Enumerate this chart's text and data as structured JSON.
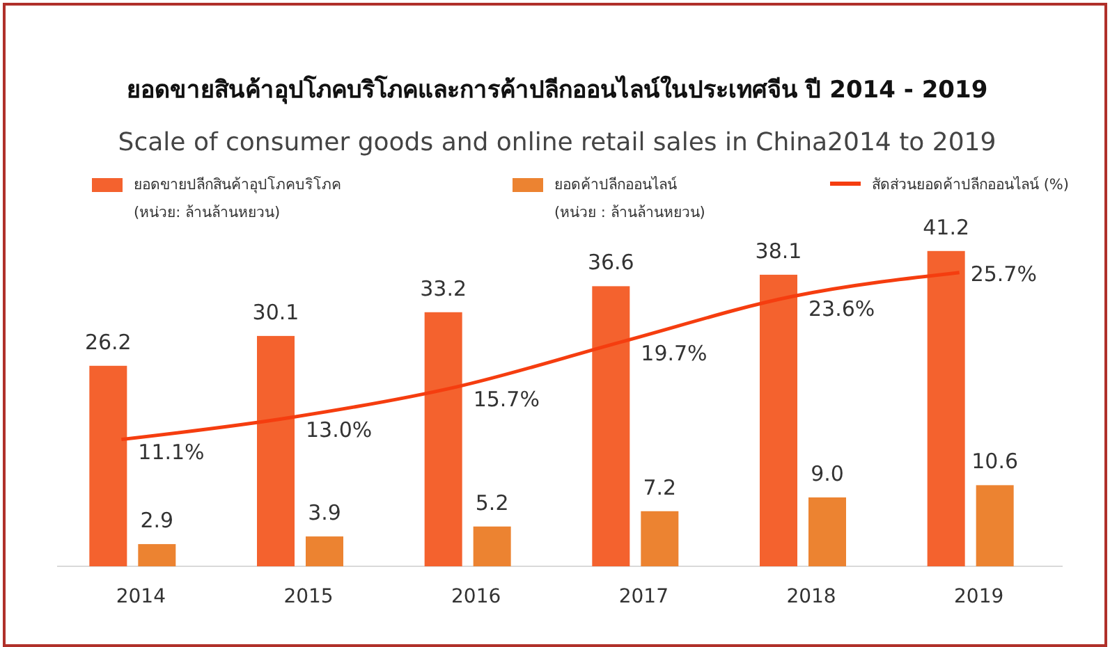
{
  "chart_data": {
    "type": "bar",
    "title": "ยอดขายสินค้าอุปโภคบริโภคและการค้าปลีกออนไลน์ในประเทศจีน ปี 2014 - 2019",
    "subtitle": "Scale of consumer goods and online retail sales in China2014 to 2019",
    "categories": [
      "2014",
      "2015",
      "2016",
      "2017",
      "2018",
      "2019"
    ],
    "series": [
      {
        "name": "ยอดขายปลีกสินค้าอุปโภคบริโภค\n(หน่วย: ล้านล้านหยวน)",
        "color": "#f4622e",
        "values": [
          26.2,
          30.1,
          33.2,
          36.6,
          38.1,
          41.2
        ],
        "value_labels": [
          "26.2",
          "30.1",
          "33.2",
          "36.6",
          "38.1",
          "41.2"
        ]
      },
      {
        "name": "ยอดค้าปลีกออนไลน์\n(หน่วย : ล้านล้านหยวน)",
        "color": "#ec8331",
        "values": [
          2.9,
          3.9,
          5.2,
          7.2,
          9.0,
          10.6
        ],
        "value_labels": [
          "2.9",
          "3.9",
          "5.2",
          "7.2",
          "9.0",
          "10.6"
        ]
      },
      {
        "name": "สัดส่วนยอดค้าปลีกออนไลน์ (%)",
        "type": "line",
        "axis": "y2",
        "color": "#f53d0f",
        "values": [
          11.1,
          13.0,
          15.7,
          19.7,
          23.6,
          25.7
        ],
        "value_labels": [
          "11.1%",
          "13.0%",
          "15.7%",
          "19.7%",
          "23.6%",
          "25.7%"
        ]
      }
    ],
    "tick_labels": "x",
    "legend": "top",
    "grid": false
  }
}
